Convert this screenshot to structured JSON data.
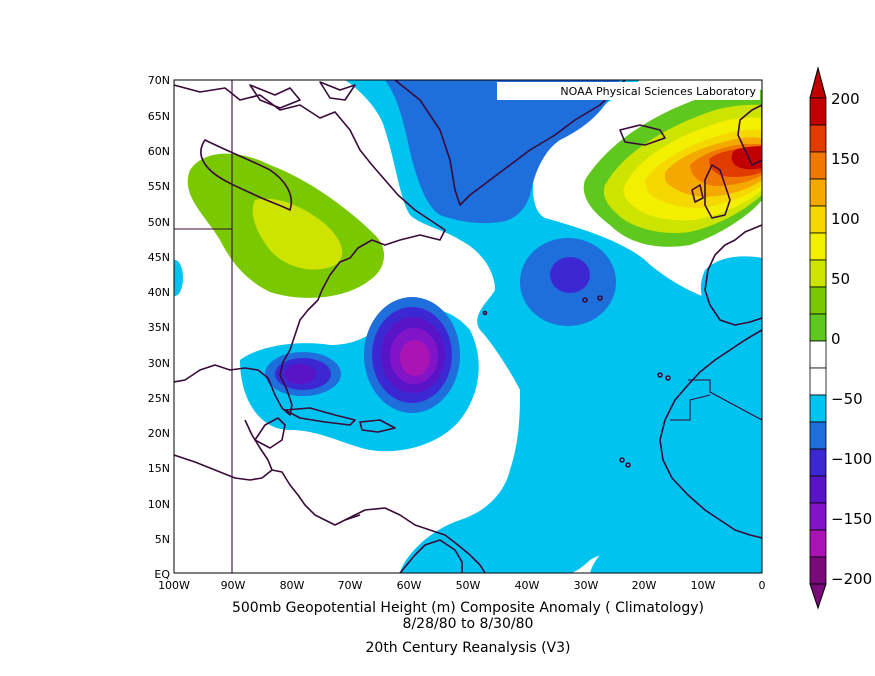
{
  "credit": "NOAA Physical Sciences Laboratory",
  "title": {
    "line1": "500mb Geopotential Height (m) Composite Anomaly ( Climatology)",
    "line2": "8/28/80  to 8/30/80",
    "line3": "20th Century Reanalysis (V3)"
  },
  "lat_labels": [
    "70N",
    "65N",
    "60N",
    "55N",
    "50N",
    "45N",
    "40N",
    "35N",
    "30N",
    "25N",
    "20N",
    "15N",
    "10N",
    "5N",
    "EQ"
  ],
  "lon_labels": [
    "100W",
    "90W",
    "80W",
    "70W",
    "60W",
    "50W",
    "40W",
    "30W",
    "20W",
    "10W",
    "0"
  ],
  "colorbar": {
    "labels": [
      "200",
      "150",
      "100",
      "50",
      "0",
      "−50",
      "−100",
      "−150",
      "−200"
    ],
    "colors": [
      "#c00000",
      "#e13c00",
      "#f07800",
      "#f5a800",
      "#f5d800",
      "#f2ef00",
      "#cde400",
      "#7ac800",
      "#5fc81e",
      "#ffffff",
      "#ffffff",
      "#00c3ef",
      "#1e6edc",
      "#3c28d2",
      "#5a14c8",
      "#8214c8",
      "#aa14b4",
      "#7a0a7a"
    ]
  },
  "chart_data": {
    "type": "contour-map",
    "variable": "500mb Geopotential Height (m) Composite Anomaly",
    "dates": "8/28/80 to 8/30/80",
    "dataset": "20th Century Reanalysis (V3)",
    "lon_range": [
      -100,
      0
    ],
    "lat_range": [
      0,
      70
    ],
    "contour_levels": [
      -200,
      -175,
      -150,
      -125,
      -100,
      -75,
      -50,
      -25,
      0,
      25,
      50,
      75,
      100,
      125,
      150,
      175,
      200
    ],
    "features": [
      {
        "name": "anomaly-max-uk",
        "lon": -2,
        "lat": 61,
        "value": 175
      },
      {
        "name": "anomaly-max-great-lakes",
        "lon": -82,
        "lat": 49,
        "value": 60
      },
      {
        "name": "anomaly-min-sw-atlantic",
        "lon": -60,
        "lat": 30,
        "value": -140
      },
      {
        "name": "anomaly-min-florida",
        "lon": -79,
        "lat": 28,
        "value": -90
      },
      {
        "name": "anomaly-min-mid-atlantic",
        "lon": -33,
        "lat": 42,
        "value": -95
      },
      {
        "name": "anomaly-low-greenland",
        "lon": -45,
        "lat": 65,
        "value": -60
      }
    ]
  }
}
